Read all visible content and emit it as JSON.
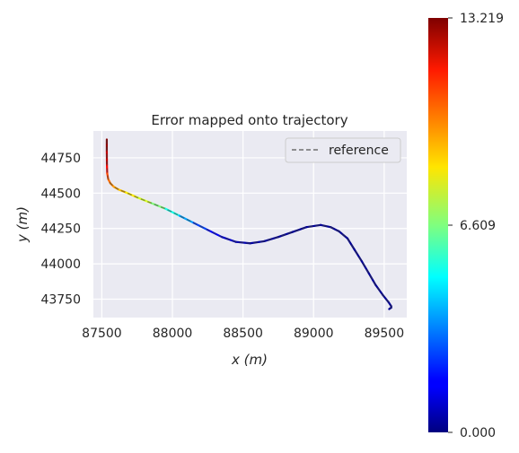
{
  "chart_data": {
    "type": "line",
    "title": "Error mapped onto trajectory",
    "xlabel": "x (m)",
    "ylabel": "y (m)",
    "xlim": [
      87440,
      89660
    ],
    "ylim": [
      43620,
      44940
    ],
    "x_ticks": [
      87500,
      88000,
      88500,
      89000,
      89500
    ],
    "y_ticks": [
      43750,
      44000,
      44250,
      44500,
      44750
    ],
    "grid": true,
    "legend": {
      "position": "top-right",
      "entries": [
        {
          "label": "reference",
          "style": "dashed",
          "color": "#6e6e6e"
        }
      ]
    },
    "colorbar": {
      "colormap": "jet",
      "min": 0.0,
      "max": 13.219,
      "ticks": [
        0.0,
        6.609,
        13.219
      ],
      "tick_labels": [
        "0.000",
        "6.609",
        "13.219"
      ]
    },
    "series": [
      {
        "name": "reference",
        "style": "dashed",
        "x": [
          87535,
          87535,
          87536,
          87538,
          87545,
          87560,
          87585,
          87620,
          87670,
          87750,
          87850,
          87950,
          88050,
          88150,
          88250,
          88350,
          88450,
          88550,
          88650,
          88750,
          88850,
          88950,
          89050,
          89120,
          89180,
          89240,
          89290,
          89340,
          89390,
          89440,
          89490,
          89530,
          89550,
          89550,
          89535
        ],
        "y": [
          44880,
          44800,
          44700,
          44640,
          44600,
          44570,
          44545,
          44525,
          44505,
          44470,
          44430,
          44390,
          44340,
          44290,
          44240,
          44190,
          44155,
          44145,
          44160,
          44190,
          44225,
          44260,
          44275,
          44260,
          44230,
          44180,
          44100,
          44020,
          43935,
          43850,
          43780,
          43730,
          43700,
          43690,
          43680
        ]
      }
    ],
    "error_values": [
      13.2,
      12.8,
      12.0,
      11.0,
      10.3,
      10.0,
      9.6,
      9.3,
      8.8,
      8.2,
      7.3,
      6.0,
      4.5,
      3.0,
      2.0,
      1.2,
      0.7,
      0.5,
      0.4,
      0.3,
      0.3,
      0.3,
      0.3,
      0.3,
      0.3,
      0.3,
      0.3,
      0.3,
      0.3,
      0.3,
      0.3,
      0.3,
      0.3,
      0.3,
      0.3
    ]
  }
}
